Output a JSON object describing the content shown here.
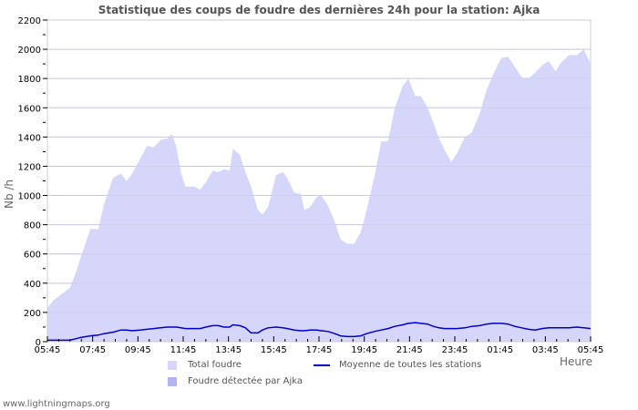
{
  "chart_data": {
    "type": "area",
    "title": "Statistique des coups de foudre des dernières 24h pour la station: Ajka",
    "xlabel": "Heure",
    "ylabel": "Nb /h",
    "ylim": [
      0,
      2200
    ],
    "yticks": [
      0,
      200,
      400,
      600,
      800,
      1000,
      1200,
      1400,
      1600,
      1800,
      2000,
      2200
    ],
    "xticks": [
      "05:45",
      "07:45",
      "09:45",
      "11:45",
      "13:45",
      "15:45",
      "17:45",
      "19:45",
      "21:45",
      "23:45",
      "01:45",
      "03:45",
      "05:45"
    ],
    "grid": true,
    "legend_position": "bottom",
    "x_hours": [
      0,
      0.25,
      0.5,
      1,
      1.25,
      1.5,
      1.9,
      2.25,
      2.5,
      2.9,
      3.25,
      3.5,
      3.75,
      4.1,
      4.4,
      4.7,
      5,
      5.3,
      5.5,
      5.7,
      5.9,
      6.1,
      6.5,
      6.75,
      7,
      7.3,
      7.55,
      7.8,
      8.05,
      8.2,
      8.5,
      8.75,
      9,
      9.3,
      9.5,
      9.75,
      10.1,
      10.4,
      10.6,
      10.9,
      11.2,
      11.35,
      11.6,
      11.9,
      12.1,
      12.4,
      12.7,
      12.95,
      13.25,
      13.55,
      13.85,
      14.1,
      14.45,
      14.75,
      15.05,
      15.35,
      15.7,
      15.95,
      16.25,
      16.5,
      16.8,
      17.05,
      17.3,
      17.55,
      17.85,
      18.1,
      18.45,
      18.75,
      19.1,
      19.4,
      19.7,
      20.05,
      20.35,
      20.65,
      20.95,
      21.25,
      21.55,
      21.85,
      22.15,
      22.45,
      22.7,
      23.05,
      23.4,
      23.7,
      24
    ],
    "series": [
      {
        "name": "Total foudre",
        "style": "area",
        "color": "#d6d6fa",
        "values": [
          230,
          280,
          310,
          370,
          470,
          590,
          770,
          770,
          940,
          1120,
          1150,
          1100,
          1150,
          1250,
          1340,
          1330,
          1380,
          1390,
          1420,
          1330,
          1160,
          1060,
          1060,
          1040,
          1090,
          1170,
          1160,
          1180,
          1170,
          1320,
          1280,
          1160,
          1060,
          900,
          870,
          920,
          1140,
          1160,
          1120,
          1020,
          1010,
          900,
          920,
          990,
          1000,
          930,
          820,
          700,
          670,
          670,
          750,
          900,
          1130,
          1370,
          1370,
          1600,
          1750,
          1800,
          1680,
          1680,
          1600,
          1500,
          1390,
          1310,
          1230,
          1290,
          1400,
          1430,
          1560,
          1720,
          1830,
          1940,
          1950,
          1880,
          1810,
          1800,
          1840,
          1890,
          1920,
          1850,
          1910,
          1960,
          1960,
          2000,
          1900
        ]
      },
      {
        "name": "Foudre détectée par Ajka",
        "style": "area",
        "color": "#b4b4f5",
        "values": []
      },
      {
        "name": "Moyenne de toutes les stations",
        "style": "line",
        "color": "#0000cc",
        "values": [
          10,
          10,
          10,
          10,
          20,
          30,
          40,
          45,
          55,
          65,
          80,
          80,
          75,
          80,
          85,
          90,
          95,
          100,
          100,
          100,
          95,
          90,
          90,
          90,
          100,
          110,
          110,
          100,
          100,
          115,
          110,
          95,
          60,
          60,
          80,
          95,
          100,
          95,
          90,
          80,
          75,
          75,
          80,
          80,
          75,
          70,
          55,
          40,
          35,
          35,
          40,
          55,
          70,
          80,
          90,
          105,
          115,
          125,
          130,
          125,
          120,
          105,
          95,
          90,
          90,
          90,
          95,
          105,
          110,
          120,
          125,
          125,
          120,
          105,
          95,
          85,
          80,
          90,
          95,
          95,
          95,
          95,
          100,
          95,
          90
        ]
      }
    ]
  },
  "title": "Statistique des coups de foudre des dernières 24h pour la station: Ajka",
  "axis": {
    "ylabel": "Nb /h",
    "xlabel": "Heure"
  },
  "legend": {
    "total": "Total foudre",
    "detected": "Foudre détectée par Ajka",
    "average": "Moyenne de toutes les stations"
  },
  "colors": {
    "total_fill": "#d6d6fa",
    "detected_fill": "#b4b4f5",
    "average_line": "#0000cc",
    "grid": "#cccccc",
    "text": "#555555"
  },
  "footer": "www.lightningmaps.org"
}
